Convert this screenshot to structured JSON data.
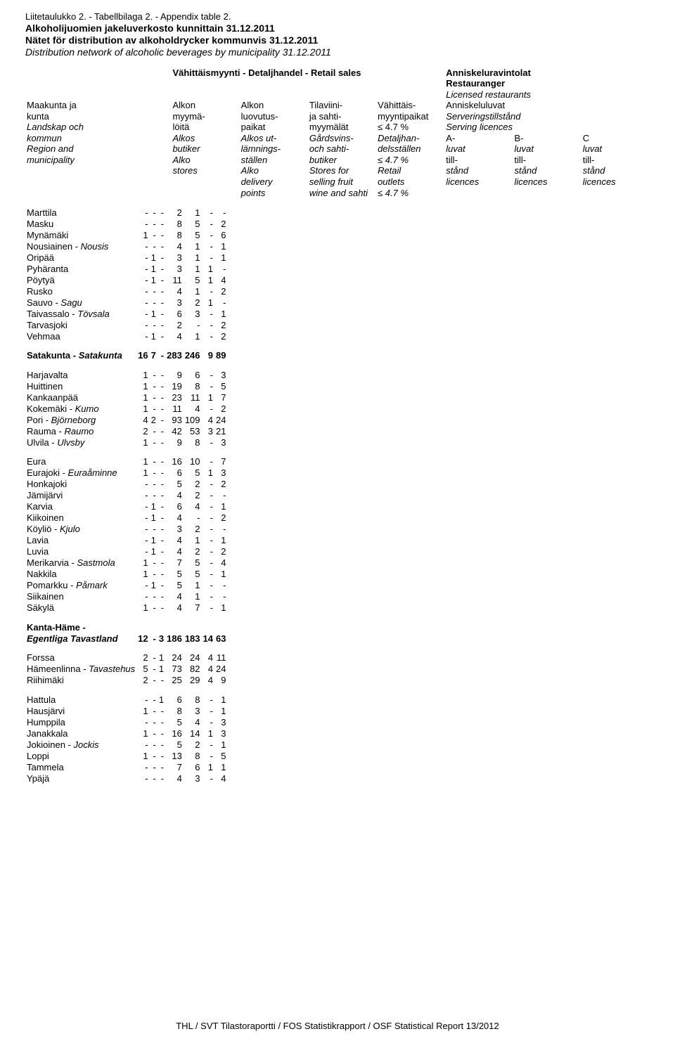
{
  "header": {
    "appendix_line": "Liitetaulukko 2. - Tabellbilaga 2. - Appendix table 2.",
    "title_fi": "Alkoholijuomien jakeluverkosto kunnittain 31.12.2011",
    "title_sv": "Nätet för distribution av alkoholdrycker kommunvis 31.12.2011",
    "title_en": "Distribution network of alcoholic beverages by municipality 31.12.2011"
  },
  "colhead": {
    "left_lines": [
      "",
      "",
      "Maakunta ja",
      "kunta",
      "Landskap och",
      "kommun",
      "Region and",
      "municipality",
      "",
      "",
      ""
    ],
    "retail_head": "Vähittäismyynti - Detaljhandel - Retail sales",
    "c1": [
      "",
      "",
      "Alkon",
      "myymä-",
      "löitä",
      "Alkos",
      "butiker",
      "Alko",
      "stores",
      "",
      ""
    ],
    "c2": [
      "",
      "",
      "Alkon",
      "luovutus-",
      "paikat",
      "Alkos ut-",
      "lämnings-",
      "ställen",
      "Alko",
      "delivery",
      "points"
    ],
    "c3": [
      "",
      "",
      "Tilaviini-",
      "ja sahti-",
      "myymälät",
      "Gårdsvins-",
      "och sahti-",
      "butiker",
      "Stores for",
      "selling fruit",
      "wine and sahti"
    ],
    "c4": [
      "",
      "",
      "Vähittäis-",
      "myyntipaikat",
      "≤ 4.7 %",
      "Detaljhan-",
      "delsställen",
      "≤ 4.7 %",
      "Retail",
      "outlets",
      "≤ 4.7 %"
    ],
    "lic_head1": "Anniskeluravintolat",
    "lic_head2": "Restauranger",
    "lic_head3": "Licensed restaurants",
    "lic_sub1": "Anniskeluluvat",
    "lic_sub2": "Serveringstillstånd",
    "lic_sub3": "Serving licences",
    "c5": [
      "",
      "",
      "",
      "",
      "",
      "A-",
      "luvat",
      "till-",
      "stånd",
      "licences",
      ""
    ],
    "c6": [
      "",
      "",
      "",
      "",
      "",
      "B-",
      "luvat",
      "till-",
      "stånd",
      "licences",
      ""
    ],
    "c7": [
      "",
      "",
      "",
      "",
      "",
      "C",
      "luvat",
      "till-",
      "stånd",
      "licences",
      ""
    ]
  },
  "groups": [
    {
      "rows": [
        {
          "n": "Marttila",
          "v": [
            "-",
            "-",
            "-",
            "2",
            "1",
            "-",
            "-"
          ]
        },
        {
          "n": "Masku",
          "v": [
            "-",
            "-",
            "-",
            "8",
            "5",
            "-",
            "2"
          ]
        },
        {
          "n": "Mynämäki",
          "v": [
            "1",
            "-",
            "-",
            "8",
            "5",
            "-",
            "6"
          ]
        },
        {
          "n": "Nousiainen - Nousis",
          "it_after": "Nousiainen - ",
          "italic": "Nousis",
          "v": [
            "-",
            "-",
            "-",
            "4",
            "1",
            "-",
            "1"
          ]
        },
        {
          "n": "Oripää",
          "v": [
            "-",
            "1",
            "-",
            "3",
            "1",
            "-",
            "1"
          ]
        },
        {
          "n": "Pyhäranta",
          "v": [
            "-",
            "1",
            "-",
            "3",
            "1",
            "1",
            "-"
          ]
        },
        {
          "n": "Pöytyä",
          "v": [
            "-",
            "1",
            "-",
            "11",
            "5",
            "1",
            "4"
          ]
        },
        {
          "n": "Rusko",
          "v": [
            "-",
            "-",
            "-",
            "4",
            "1",
            "-",
            "2"
          ]
        },
        {
          "n": "Sauvo - Sagu",
          "it_after": "Sauvo - ",
          "italic": "Sagu",
          "v": [
            "-",
            "-",
            "-",
            "3",
            "2",
            "1",
            "-"
          ]
        },
        {
          "n": "Taivassalo - Tövsala",
          "it_after": "Taivassalo - ",
          "italic": "Tövsala",
          "v": [
            "-",
            "1",
            "-",
            "6",
            "3",
            "-",
            "1"
          ]
        },
        {
          "n": "Tarvasjoki",
          "v": [
            "-",
            "-",
            "-",
            "2",
            "-",
            "-",
            "2"
          ]
        },
        {
          "n": "Vehmaa",
          "v": [
            "-",
            "1",
            "-",
            "4",
            "1",
            "-",
            "2"
          ]
        }
      ]
    },
    {
      "head": {
        "n": "Satakunta - Satakunta",
        "it_after": "Satakunta - ",
        "italic": "Satakunta",
        "bold": true,
        "v": [
          "16",
          "7",
          "-",
          "283",
          "246",
          "9",
          "89"
        ]
      }
    },
    {
      "rows": [
        {
          "n": "Harjavalta",
          "v": [
            "1",
            "-",
            "-",
            "9",
            "6",
            "-",
            "3"
          ]
        },
        {
          "n": "Huittinen",
          "v": [
            "1",
            "-",
            "-",
            "19",
            "8",
            "-",
            "5"
          ]
        },
        {
          "n": "Kankaanpää",
          "v": [
            "1",
            "-",
            "-",
            "23",
            "11",
            "1",
            "7"
          ]
        },
        {
          "n": "Kokemäki - Kumo",
          "it_after": "Kokemäki - ",
          "italic": "Kumo",
          "v": [
            "1",
            "-",
            "-",
            "11",
            "4",
            "-",
            "2"
          ]
        },
        {
          "n": "Pori - Björneborg",
          "it_after": "Pori - ",
          "italic": "Björneborg",
          "v": [
            "4",
            "2",
            "-",
            "93",
            "109",
            "4",
            "24"
          ]
        },
        {
          "n": "Rauma - Raumo",
          "it_after": "Rauma - ",
          "italic": "Raumo",
          "v": [
            "2",
            "-",
            "-",
            "42",
            "53",
            "3",
            "21"
          ]
        },
        {
          "n": "Ulvila - Ulvsby",
          "it_after": "Ulvila - ",
          "italic": "Ulvsby",
          "v": [
            "1",
            "-",
            "-",
            "9",
            "8",
            "-",
            "3"
          ]
        }
      ]
    },
    {
      "rows": [
        {
          "n": "Eura",
          "v": [
            "1",
            "-",
            "-",
            "16",
            "10",
            "-",
            "7"
          ]
        },
        {
          "n": "Eurajoki - Euraåminne",
          "it_after": "Eurajoki - ",
          "italic": "Euraåminne",
          "v": [
            "1",
            "-",
            "-",
            "6",
            "5",
            "1",
            "3"
          ]
        },
        {
          "n": "Honkajoki",
          "v": [
            "-",
            "-",
            "-",
            "5",
            "2",
            "-",
            "2"
          ]
        },
        {
          "n": "Jämijärvi",
          "v": [
            "-",
            "-",
            "-",
            "4",
            "2",
            "-",
            "-"
          ]
        },
        {
          "n": "Karvia",
          "v": [
            "-",
            "1",
            "-",
            "6",
            "4",
            "-",
            "1"
          ]
        },
        {
          "n": "Kiikoinen",
          "v": [
            "-",
            "1",
            "-",
            "4",
            "-",
            "-",
            "2"
          ]
        },
        {
          "n": "Köyliö - Kjulo",
          "it_after": "Köyliö - ",
          "italic": "Kjulo",
          "v": [
            "-",
            "-",
            "-",
            "3",
            "2",
            "-",
            "-"
          ]
        },
        {
          "n": "Lavia",
          "v": [
            "-",
            "1",
            "-",
            "4",
            "1",
            "-",
            "1"
          ]
        },
        {
          "n": "Luvia",
          "v": [
            "-",
            "1",
            "-",
            "4",
            "2",
            "-",
            "2"
          ]
        },
        {
          "n": "Merikarvia - Sastmola",
          "it_after": "Merikarvia - ",
          "italic": "Sastmola",
          "v": [
            "1",
            "-",
            "-",
            "7",
            "5",
            "-",
            "4"
          ]
        },
        {
          "n": "Nakkila",
          "v": [
            "1",
            "-",
            "-",
            "5",
            "5",
            "-",
            "1"
          ]
        },
        {
          "n": "Pomarkku - Påmark",
          "it_after": "Pomarkku - ",
          "italic": "Påmark",
          "v": [
            "-",
            "1",
            "-",
            "5",
            "1",
            "-",
            "-"
          ]
        },
        {
          "n": "Siikainen",
          "v": [
            "-",
            "-",
            "-",
            "4",
            "1",
            "-",
            "-"
          ]
        },
        {
          "n": "Säkylä",
          "v": [
            "1",
            "-",
            "-",
            "4",
            "7",
            "-",
            "1"
          ]
        }
      ]
    },
    {
      "head": {
        "two_line": true,
        "line1": "Kanta-Häme -",
        "line2_italic": "Egentliga Tavastland",
        "bold": true,
        "v": [
          "12",
          "-",
          "3",
          "186",
          "183",
          "14",
          "63"
        ]
      }
    },
    {
      "rows": [
        {
          "n": "Forssa",
          "v": [
            "2",
            "-",
            "1",
            "24",
            "24",
            "4",
            "11"
          ]
        },
        {
          "n": "Hämeenlinna - Tavastehus",
          "it_after": "Hämeenlinna - ",
          "italic": "Tavastehus",
          "v": [
            "5",
            "-",
            "1",
            "73",
            "82",
            "4",
            "24"
          ]
        },
        {
          "n": "Riihimäki",
          "v": [
            "2",
            "-",
            "-",
            "25",
            "29",
            "4",
            "9"
          ]
        }
      ]
    },
    {
      "rows": [
        {
          "n": "Hattula",
          "v": [
            "-",
            "-",
            "1",
            "6",
            "8",
            "-",
            "1"
          ]
        },
        {
          "n": "Hausjärvi",
          "v": [
            "1",
            "-",
            "-",
            "8",
            "3",
            "-",
            "1"
          ]
        },
        {
          "n": "Humppila",
          "v": [
            "-",
            "-",
            "-",
            "5",
            "4",
            "-",
            "3"
          ]
        },
        {
          "n": "Janakkala",
          "v": [
            "1",
            "-",
            "-",
            "16",
            "14",
            "1",
            "3"
          ]
        },
        {
          "n": "Jokioinen - Jockis",
          "it_after": "Jokioinen - ",
          "italic": "Jockis",
          "v": [
            "-",
            "-",
            "-",
            "5",
            "2",
            "-",
            "1"
          ]
        },
        {
          "n": "Loppi",
          "v": [
            "1",
            "-",
            "-",
            "13",
            "8",
            "-",
            "5"
          ]
        },
        {
          "n": "Tammela",
          "v": [
            "-",
            "-",
            "-",
            "7",
            "6",
            "1",
            "1"
          ]
        },
        {
          "n": "Ypäjä",
          "v": [
            "-",
            "-",
            "-",
            "4",
            "3",
            "-",
            "4"
          ]
        }
      ]
    }
  ],
  "footer": "THL / SVT Tilastoraportti / FOS Statistikrapport / OSF Statistical Report 13/2012"
}
